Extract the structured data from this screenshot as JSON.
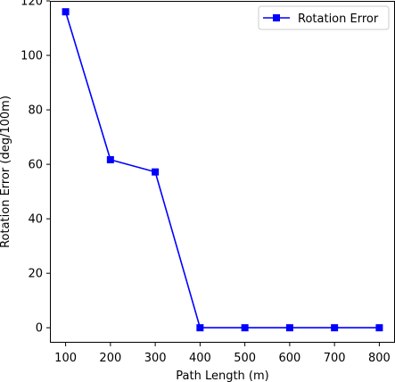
{
  "chart_data": {
    "type": "line",
    "title": "",
    "xlabel": "Path Length (m)",
    "ylabel": "Rotation Error (deg/100m)",
    "x": [
      100,
      200,
      300,
      400,
      500,
      600,
      700,
      800
    ],
    "series": [
      {
        "name": "Rotation Error",
        "values": [
          116.0,
          61.7,
          57.2,
          0,
          0,
          0,
          0,
          0
        ],
        "color": "#0000ff",
        "marker": "square"
      }
    ],
    "xlim": [
      65,
      835
    ],
    "ylim": [
      -5.5,
      120
    ],
    "xticks": [
      100,
      200,
      300,
      400,
      500,
      600,
      700,
      800
    ],
    "yticks": [
      0,
      20,
      40,
      60,
      80,
      100,
      120
    ],
    "xtick_labels": [
      "100",
      "200",
      "300",
      "400",
      "500",
      "600",
      "700",
      "800"
    ],
    "ytick_labels": [
      "0",
      "20",
      "40",
      "60",
      "80",
      "100",
      "120"
    ],
    "grid": false,
    "legend_position": "top-right"
  }
}
